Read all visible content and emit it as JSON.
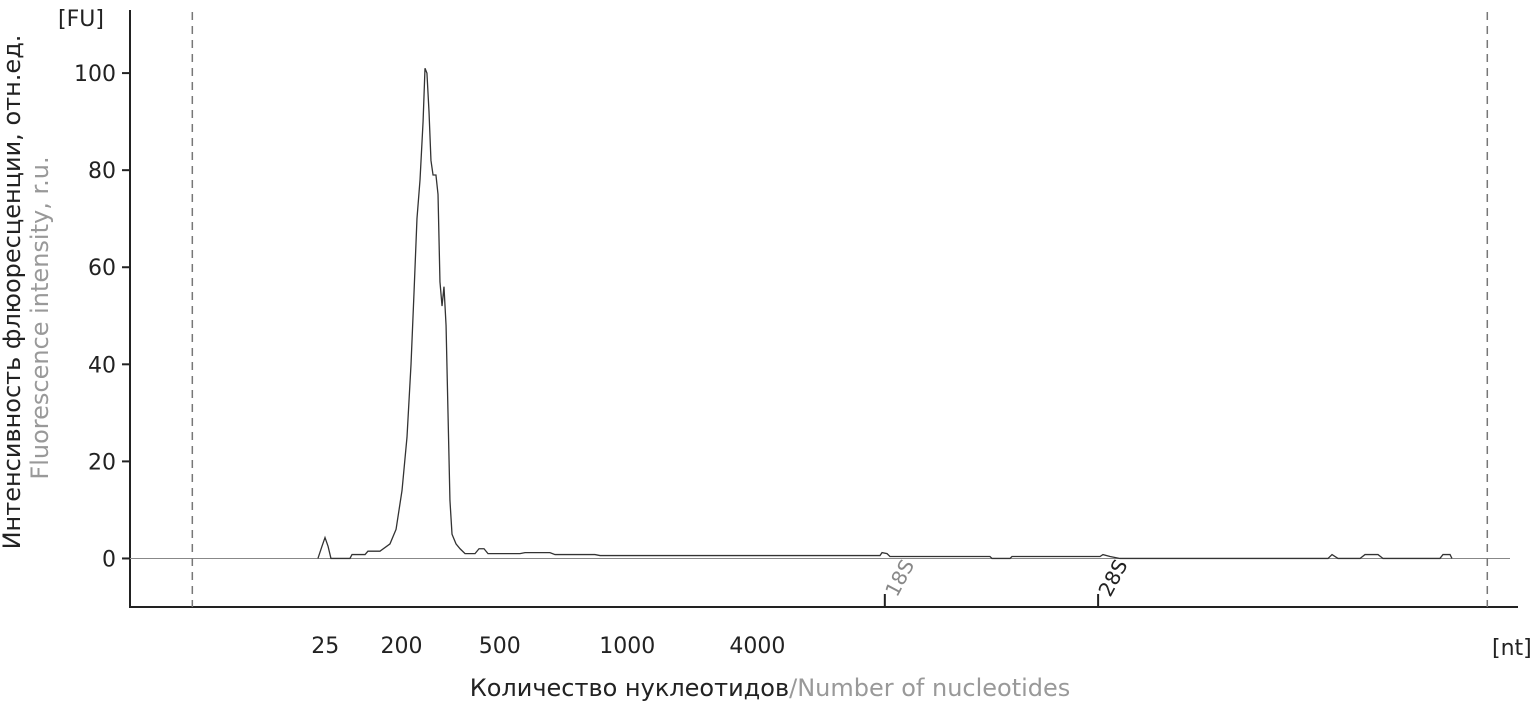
{
  "chart_data": {
    "type": "line",
    "y_unit": "[FU]",
    "x_unit": "[nt]",
    "y_title": "Интенсивность флюоресценции, отн.ед.",
    "y_title_en": "Fluorescence intensity, r.u.",
    "x_title": "Количество нуклеотидов",
    "x_title_en": "/Number of nucleotides",
    "color": "#333333",
    "xlim": [
      0,
      100
    ],
    "ylim": [
      -10,
      113
    ],
    "yticks": [
      0,
      20,
      40,
      60,
      80,
      100
    ],
    "xticks": [
      {
        "value": 14.1,
        "label": "25"
      },
      {
        "value": 19.6,
        "label": "200"
      },
      {
        "value": 26.7,
        "label": "500"
      },
      {
        "value": 35.9,
        "label": "1000"
      },
      {
        "value": 45.3,
        "label": "4000"
      }
    ],
    "markers": [
      {
        "label": "18S",
        "x": 54.5
      },
      {
        "label": "28S",
        "x": 69.9
      }
    ],
    "dashed_lines": [
      4.5,
      98.0
    ],
    "x": [
      13.57,
      13.86,
      14.08,
      14.3,
      14.51,
      15.88,
      16.03,
      16.97,
      17.18,
      18.05,
      18.77,
      19.21,
      19.64,
      20.0,
      20.29,
      20.51,
      20.72,
      20.94,
      21.16,
      21.3,
      21.44,
      21.59,
      21.73,
      21.88,
      22.09,
      22.24,
      22.38,
      22.53,
      22.67,
      22.82,
      22.96,
      23.1,
      23.25,
      23.54,
      23.83,
      24.19,
      24.91,
      25.2,
      25.56,
      25.85,
      28.16,
      28.52,
      30.32,
      30.69,
      33.57,
      33.94,
      54.15,
      54.3,
      54.66,
      54.87,
      62.09,
      62.24,
      63.54,
      63.68,
      70.04,
      70.25,
      70.76,
      71.48,
      86.5,
      86.79,
      87.22,
      88.81,
      89.17,
      90.11,
      90.47,
      94.58,
      94.8,
      95.31,
      95.45
    ],
    "values": [
      0,
      2.5,
      4.3,
      2.5,
      0,
      0,
      0.8,
      0.8,
      1.5,
      1.5,
      3,
      6,
      14,
      25,
      40,
      55,
      70,
      78,
      90,
      101,
      100,
      92,
      82,
      79,
      79,
      75,
      57,
      52,
      56,
      48,
      30,
      12,
      5,
      3,
      2,
      1,
      1,
      2,
      2,
      1,
      1,
      1.2,
      1.2,
      0.8,
      0.8,
      0.6,
      0.6,
      1.2,
      1.0,
      0.4,
      0.4,
      0,
      0,
      0.4,
      0.4,
      0.8,
      0.4,
      0,
      0,
      0.8,
      0,
      0,
      0.8,
      0.8,
      0,
      0,
      0.8,
      0.8,
      0
    ]
  }
}
